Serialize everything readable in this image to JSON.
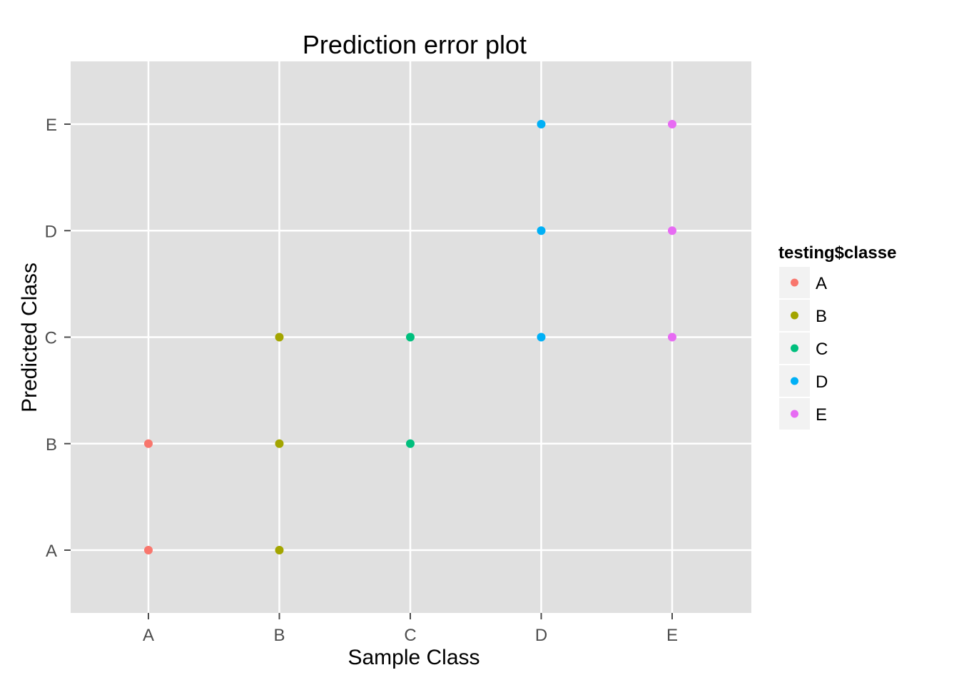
{
  "chart_data": {
    "type": "scatter",
    "title": "Prediction error plot",
    "xlabel": "Sample Class",
    "ylabel": "Predicted Class",
    "x_categories": [
      "A",
      "B",
      "C",
      "D",
      "E"
    ],
    "y_categories": [
      "A",
      "B",
      "C",
      "D",
      "E"
    ],
    "grid": true,
    "legend": {
      "title": "testing$classe",
      "position": "right",
      "entries": [
        {
          "label": "A",
          "color": "#F8766D"
        },
        {
          "label": "B",
          "color": "#A3A500"
        },
        {
          "label": "C",
          "color": "#00BF7D"
        },
        {
          "label": "D",
          "color": "#00B0F6"
        },
        {
          "label": "E",
          "color": "#E76BF3"
        }
      ]
    },
    "points": [
      {
        "x": "A",
        "y": "A",
        "classe": "A"
      },
      {
        "x": "A",
        "y": "B",
        "classe": "A"
      },
      {
        "x": "B",
        "y": "A",
        "classe": "B"
      },
      {
        "x": "B",
        "y": "B",
        "classe": "B"
      },
      {
        "x": "B",
        "y": "C",
        "classe": "B"
      },
      {
        "x": "C",
        "y": "B",
        "classe": "C"
      },
      {
        "x": "C",
        "y": "C",
        "classe": "C"
      },
      {
        "x": "D",
        "y": "C",
        "classe": "D"
      },
      {
        "x": "D",
        "y": "D",
        "classe": "D"
      },
      {
        "x": "D",
        "y": "E",
        "classe": "D"
      },
      {
        "x": "E",
        "y": "C",
        "classe": "E"
      },
      {
        "x": "E",
        "y": "D",
        "classe": "E"
      },
      {
        "x": "E",
        "y": "E",
        "classe": "E"
      }
    ]
  }
}
